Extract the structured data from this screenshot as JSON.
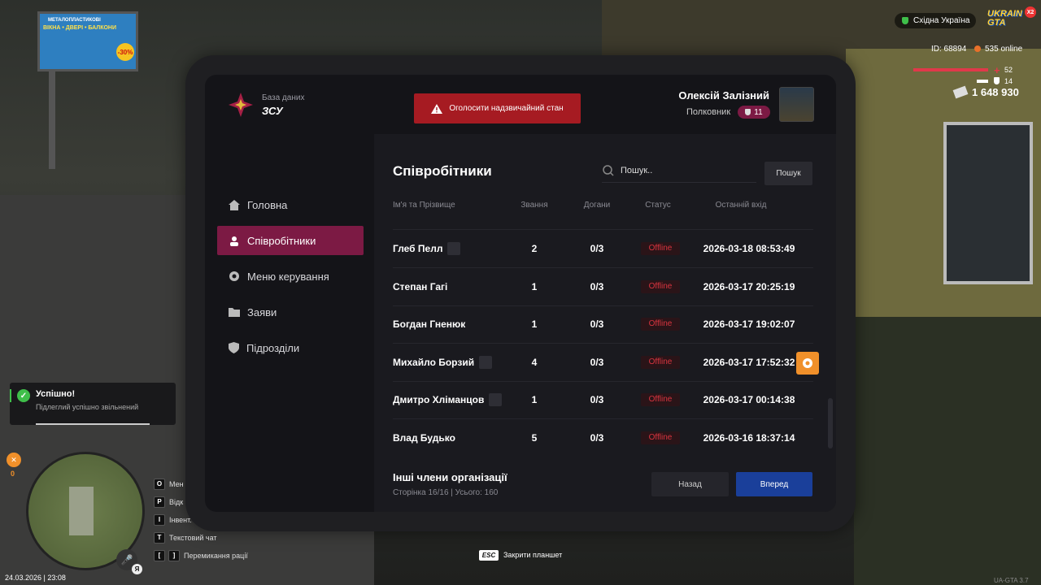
{
  "hud": {
    "region": "Східна Україна",
    "logo": "UKRAIN GTA",
    "logo_badge": "X2",
    "player_id": "ID: 68894",
    "online": "535 online",
    "health": "52",
    "armor": "14",
    "money": "1 648 930"
  },
  "billboard": {
    "line1": "МЕТАЛОПЛАСТИКОВІ",
    "line2": "ВІКНА • ДВЕРІ • БАЛКОНИ",
    "discount": "-30%"
  },
  "tablet": {
    "header": {
      "subtitle": "База даних",
      "org": "ЗСУ",
      "emergency_button": "Оголосити надзвичайний стан",
      "user_name": "Олексій Залізний",
      "user_rank": "Полковник",
      "user_level": "11"
    },
    "nav": [
      "Головна",
      "Співробітники",
      "Меню керування",
      "Заяви",
      "Підрозділи"
    ],
    "page_title": "Співробітники",
    "search_placeholder": "Пошук..",
    "search_button": "Пошук",
    "columns": [
      "Ім'я та Прізвище",
      "Звання",
      "Догани",
      "Статус",
      "Останній вхід"
    ],
    "rows": [
      {
        "name": "Глеб Пелл",
        "badge": true,
        "rank": 2,
        "warnings": "0/3",
        "status": "Offline",
        "last_login": "2026-03-18 08:53:49"
      },
      {
        "name": "Степан Гагі",
        "badge": false,
        "rank": 1,
        "warnings": "0/3",
        "status": "Offline",
        "last_login": "2026-03-17 20:25:19"
      },
      {
        "name": "Богдан Гненюк",
        "badge": false,
        "rank": 1,
        "warnings": "0/3",
        "status": "Offline",
        "last_login": "2026-03-17 19:02:07"
      },
      {
        "name": "Михайло Борзий",
        "badge": true,
        "rank": 4,
        "warnings": "0/3",
        "status": "Offline",
        "last_login": "2026-03-17 17:52:32"
      },
      {
        "name": "Дмитро Хліманцов",
        "badge": true,
        "rank": 1,
        "warnings": "0/3",
        "status": "Offline",
        "last_login": "2026-03-17 00:14:38"
      },
      {
        "name": "Влад Будько",
        "badge": false,
        "rank": 5,
        "warnings": "0/3",
        "status": "Offline",
        "last_login": "2026-03-16 18:37:14"
      }
    ],
    "footer": {
      "title": "Інші члени організації",
      "page_info": "Сторінка 16/16 | Усього: 160",
      "prev": "Назад",
      "next": "Вперед"
    }
  },
  "notification": {
    "title": "Успішно!",
    "text": "Підлеглий успішно звільнений"
  },
  "minimap": {
    "counter": "0",
    "mic_key": "Я"
  },
  "hints": [
    {
      "keys": [
        "O"
      ],
      "label": "Мен"
    },
    {
      "keys": [
        "P"
      ],
      "label": "Відк"
    },
    {
      "keys": [
        "I"
      ],
      "label": "Інвент."
    },
    {
      "keys": [
        "T"
      ],
      "label": "Текстовий чат"
    },
    {
      "keys": [
        "[",
        "]"
      ],
      "label": "Перемикання рації"
    }
  ],
  "footer": {
    "datetime": "24.03.2026 | 23:08",
    "esc_key": "ESC",
    "esc_label": "Закрити планшет",
    "version": "UA-GTA 3.7"
  }
}
